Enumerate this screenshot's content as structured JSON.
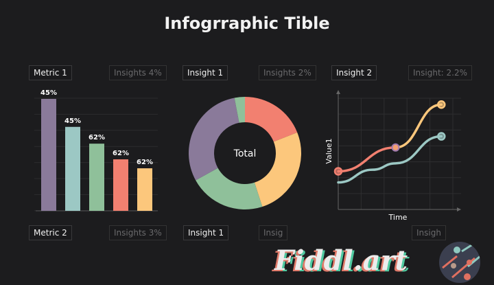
{
  "title": "Infogrraphic Tible",
  "panels": {
    "top": [
      {
        "label": "Metric 1",
        "insight": "Insights 4%"
      },
      {
        "label": "Insight 1",
        "insight": "Insights 2%"
      },
      {
        "label": "Insight 2",
        "insight": "Insight: 2.2%"
      }
    ],
    "bottom": [
      {
        "label": "Metric 2",
        "insight": "Insights 3%"
      },
      {
        "label": "Insight 1",
        "insight": "Insig"
      },
      {
        "label": "",
        "insight": "Insigh"
      }
    ]
  },
  "logo": "Fiddl.art",
  "chart_data": [
    {
      "type": "bar",
      "categories": [
        "",
        "",
        "",
        "",
        ""
      ],
      "data_labels": [
        "45%",
        "45%",
        "62%",
        "62%",
        "62%"
      ],
      "relative_heights": [
        100,
        75,
        60,
        46,
        38
      ],
      "colors": [
        "#8a7a9a",
        "#9cc8c4",
        "#8fc09a",
        "#f28070",
        "#fcc77c"
      ],
      "grid": true
    },
    {
      "type": "pie",
      "donut": true,
      "center_label": "Total",
      "values": [
        19,
        26,
        22,
        30,
        3
      ],
      "colors": [
        "#f28070",
        "#fcc77c",
        "#8fc09a",
        "#8a7a9a",
        "#8fc09a"
      ]
    },
    {
      "type": "line",
      "xlabel": "Time",
      "ylabel": "Value1",
      "grid": true,
      "xlim": [
        0,
        5
      ],
      "ylim": [
        0,
        7
      ],
      "series": [
        {
          "color": "#f28070",
          "x": [
            0,
            2.5
          ],
          "y": [
            2.4,
            3.9
          ]
        },
        {
          "color": "#fcc77c",
          "x": [
            2.5,
            4.5
          ],
          "y": [
            3.9,
            6.6
          ]
        },
        {
          "color": "#9cc8c4",
          "x": [
            0,
            1.5,
            2.5,
            4.5
          ],
          "y": [
            1.7,
            2.5,
            2.9,
            4.6
          ]
        }
      ]
    }
  ]
}
